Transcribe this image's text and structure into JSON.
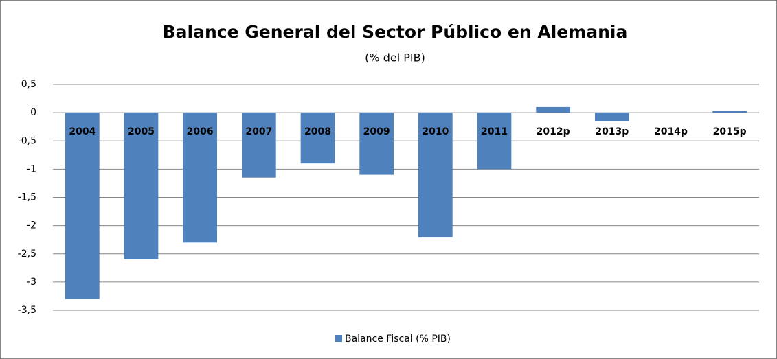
{
  "chart_data": {
    "type": "bar",
    "title": "Balance General del Sector Público en Alemania",
    "subtitle": "(% del PIB)",
    "categories": [
      "2004",
      "2005",
      "2006",
      "2007",
      "2008",
      "2009",
      "2010",
      "2011",
      "2012p",
      "2013p",
      "2014p",
      "2015p"
    ],
    "series": [
      {
        "name": "Balance Fiscal (% PIB)",
        "color": "#4f81bd",
        "values": [
          -3.3,
          -2.6,
          -2.3,
          -1.15,
          -0.9,
          -1.1,
          -2.2,
          -1,
          0.1,
          -0.15,
          0,
          0.03
        ]
      }
    ],
    "ylim": [
      -3.5,
      0.5
    ],
    "yticks": [
      {
        "value": 0.5,
        "label": "0,5"
      },
      0,
      {
        "value": -0.5,
        "label": "-0,5"
      },
      -1,
      {
        "value": -1.5,
        "label": "-1,5"
      },
      -2,
      {
        "value": -2.5,
        "label": "-2,5"
      },
      -3,
      {
        "value": -3.5,
        "label": "-3,5"
      }
    ],
    "grid": true,
    "legend": "bottom"
  }
}
